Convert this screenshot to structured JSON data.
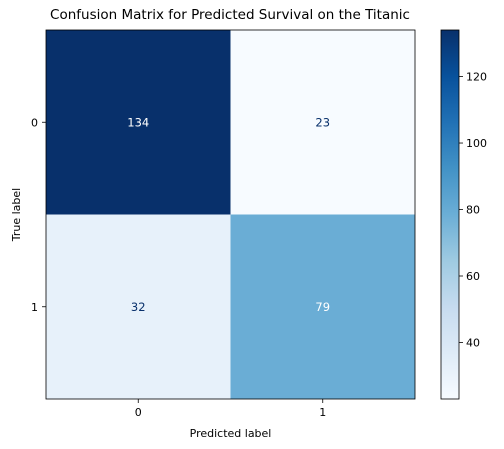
{
  "chart_data": {
    "type": "heatmap",
    "title": "Confusion Matrix for Predicted Survival on the Titanic",
    "xlabel": "Predicted label",
    "ylabel": "True label",
    "x_categories": [
      "0",
      "1"
    ],
    "y_categories": [
      "0",
      "1"
    ],
    "matrix": [
      [
        134,
        23
      ],
      [
        32,
        79
      ]
    ],
    "colormap": "Blues",
    "color_range": [
      23,
      134
    ],
    "colorbar_ticks": [
      40,
      60,
      80,
      100,
      120
    ],
    "colorbar_tick_labels": [
      "40",
      "60",
      "80",
      "100",
      "120"
    ],
    "colorbar_position": "right",
    "grid": false
  },
  "colors": {
    "light_cell": "#f7fbff",
    "dark_cell": "#08306b",
    "text_on_dark": "#ffffff",
    "text_on_light": "#08306b"
  }
}
